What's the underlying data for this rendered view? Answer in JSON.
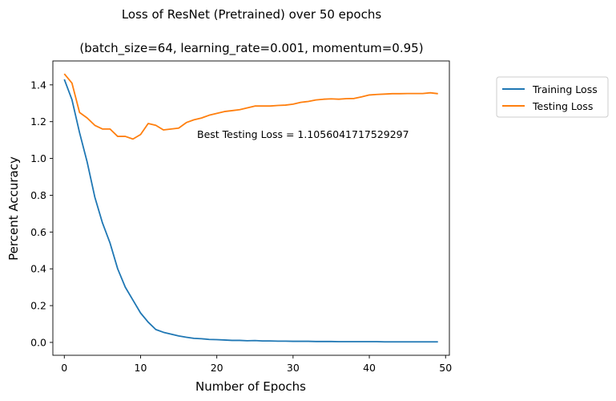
{
  "chart_data": {
    "type": "line",
    "title": "Loss of ResNet (Pretrained) over 50 epochs",
    "subtitle": "(batch_size=64, learning_rate=0.001, momentum=0.95)",
    "xlabel": "Number of Epochs",
    "ylabel": "Percent Accuracy",
    "xlim": [
      -1.5,
      50.5
    ],
    "ylim": [
      -0.07,
      1.53
    ],
    "xticks": [
      0,
      10,
      20,
      30,
      40,
      50
    ],
    "xtick_labels": [
      "0",
      "10",
      "20",
      "30",
      "40",
      "50"
    ],
    "yticks": [
      0.0,
      0.2,
      0.4,
      0.6,
      0.8,
      1.0,
      1.2,
      1.4
    ],
    "ytick_labels": [
      "0.0",
      "0.2",
      "0.4",
      "0.6",
      "0.8",
      "1.0",
      "1.2",
      "1.4"
    ],
    "grid": false,
    "legend_position": "outside-top-right",
    "annotation": "Best Testing Loss = 1.1056041717529297",
    "x": [
      0,
      1,
      2,
      3,
      4,
      5,
      6,
      7,
      8,
      9,
      10,
      11,
      12,
      13,
      14,
      15,
      16,
      17,
      18,
      19,
      20,
      21,
      22,
      23,
      24,
      25,
      26,
      27,
      28,
      29,
      30,
      31,
      32,
      33,
      34,
      35,
      36,
      37,
      38,
      39,
      40,
      41,
      42,
      43,
      44,
      45,
      46,
      47,
      48,
      49
    ],
    "series": [
      {
        "name": "Training Loss",
        "color": "#1f77b4",
        "values": [
          1.43,
          1.32,
          1.14,
          0.98,
          0.79,
          0.65,
          0.54,
          0.4,
          0.3,
          0.23,
          0.16,
          0.11,
          0.07,
          0.055,
          0.045,
          0.035,
          0.028,
          0.022,
          0.02,
          0.016,
          0.015,
          0.013,
          0.011,
          0.011,
          0.009,
          0.01,
          0.008,
          0.008,
          0.007,
          0.007,
          0.006,
          0.006,
          0.006,
          0.005,
          0.005,
          0.005,
          0.004,
          0.004,
          0.004,
          0.004,
          0.004,
          0.004,
          0.003,
          0.003,
          0.003,
          0.003,
          0.003,
          0.003,
          0.003,
          0.003
        ]
      },
      {
        "name": "Testing Loss",
        "color": "#ff7f0e",
        "values": [
          1.46,
          1.41,
          1.25,
          1.22,
          1.18,
          1.16,
          1.16,
          1.12,
          1.12,
          1.1056,
          1.13,
          1.19,
          1.18,
          1.155,
          1.16,
          1.165,
          1.195,
          1.21,
          1.22,
          1.235,
          1.245,
          1.255,
          1.26,
          1.265,
          1.275,
          1.285,
          1.285,
          1.285,
          1.288,
          1.29,
          1.295,
          1.305,
          1.31,
          1.318,
          1.322,
          1.324,
          1.322,
          1.325,
          1.326,
          1.335,
          1.345,
          1.348,
          1.35,
          1.352,
          1.352,
          1.353,
          1.353,
          1.353,
          1.357,
          1.352
        ]
      }
    ]
  }
}
